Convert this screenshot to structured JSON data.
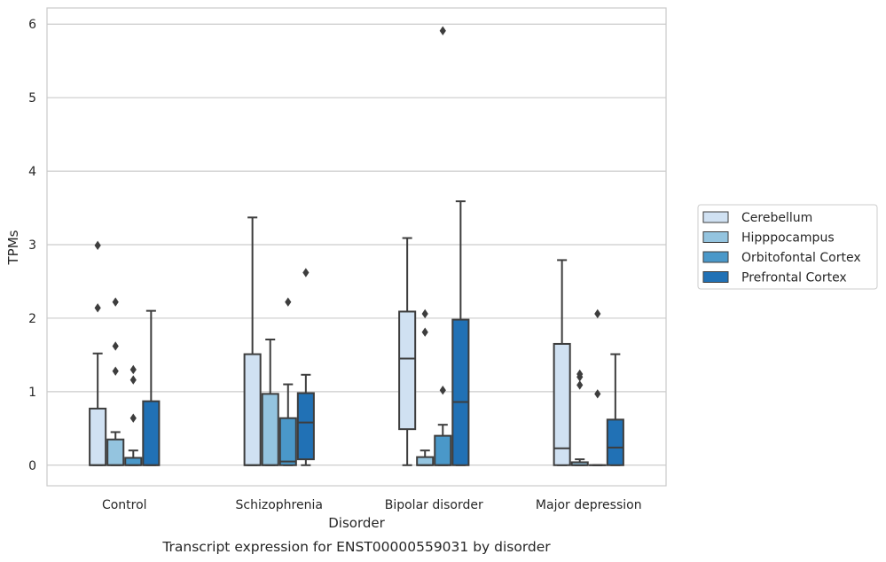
{
  "chart_data": {
    "type": "box",
    "title": "",
    "caption": "Transcript expression for ENST00000559031 by disorder",
    "xlabel": "Disorder",
    "ylabel": "TPMs",
    "ylim": [
      -0.28,
      6.22
    ],
    "yticks": [
      0,
      1,
      2,
      3,
      4,
      5,
      6
    ],
    "grid": true,
    "legend_position": "right",
    "categories": [
      "Control",
      "Schizophrenia",
      "Bipolar disorder",
      "Major depression"
    ],
    "series": [
      {
        "name": "Cerebellum",
        "color": "#d0e1f2",
        "boxes": [
          {
            "whislo": 0,
            "q1": 0,
            "med": 0,
            "q3": 0.77,
            "whishi": 1.52,
            "fliers": [
              2.14,
              2.99
            ]
          },
          {
            "whislo": 0,
            "q1": 0,
            "med": 0,
            "q3": 1.51,
            "whishi": 3.37,
            "fliers": []
          },
          {
            "whislo": 0,
            "q1": 0.49,
            "med": 1.45,
            "q3": 2.09,
            "whishi": 3.09,
            "fliers": []
          },
          {
            "whislo": 0,
            "q1": 0,
            "med": 0.23,
            "q3": 1.65,
            "whishi": 2.79,
            "fliers": []
          }
        ]
      },
      {
        "name": "Hipppocampus",
        "color": "#94c4df",
        "boxes": [
          {
            "whislo": 0,
            "q1": 0,
            "med": 0,
            "q3": 0.35,
            "whishi": 0.45,
            "fliers": [
              1.28,
              1.62,
              2.22
            ]
          },
          {
            "whislo": 0,
            "q1": 0,
            "med": 0,
            "q3": 0.97,
            "whishi": 1.71,
            "fliers": []
          },
          {
            "whislo": 0,
            "q1": 0,
            "med": 0,
            "q3": 0.11,
            "whishi": 0.2,
            "fliers": [
              1.81,
              2.06
            ]
          },
          {
            "whislo": 0,
            "q1": 0,
            "med": 0,
            "q3": 0.04,
            "whishi": 0.08,
            "fliers": [
              1.09,
              1.2,
              1.24
            ]
          }
        ]
      },
      {
        "name": "Orbitofontal Cortex",
        "color": "#4a98c9",
        "boxes": [
          {
            "whislo": 0,
            "q1": 0,
            "med": 0,
            "q3": 0.1,
            "whishi": 0.2,
            "fliers": [
              0.64,
              1.16,
              1.3
            ]
          },
          {
            "whislo": 0,
            "q1": 0,
            "med": 0.05,
            "q3": 0.64,
            "whishi": 1.1,
            "fliers": [
              2.22
            ]
          },
          {
            "whislo": 0,
            "q1": 0,
            "med": 0,
            "q3": 0.4,
            "whishi": 0.55,
            "fliers": [
              1.02,
              5.91
            ]
          },
          {
            "whislo": 0,
            "q1": 0,
            "med": 0,
            "q3": 0,
            "whishi": 0,
            "fliers": [
              0.97,
              2.06
            ]
          }
        ]
      },
      {
        "name": "Prefrontal Cortex",
        "color": "#2171b5",
        "boxes": [
          {
            "whislo": 0,
            "q1": 0,
            "med": 0,
            "q3": 0.87,
            "whishi": 2.1,
            "fliers": []
          },
          {
            "whislo": 0,
            "q1": 0.08,
            "med": 0.58,
            "q3": 0.98,
            "whishi": 1.23,
            "fliers": [
              2.62
            ]
          },
          {
            "whislo": 0,
            "q1": 0,
            "med": 0.86,
            "q3": 1.98,
            "whishi": 3.59,
            "fliers": []
          },
          {
            "whislo": 0,
            "q1": 0,
            "med": 0.24,
            "q3": 0.62,
            "whishi": 1.51,
            "fliers": []
          }
        ]
      }
    ]
  }
}
